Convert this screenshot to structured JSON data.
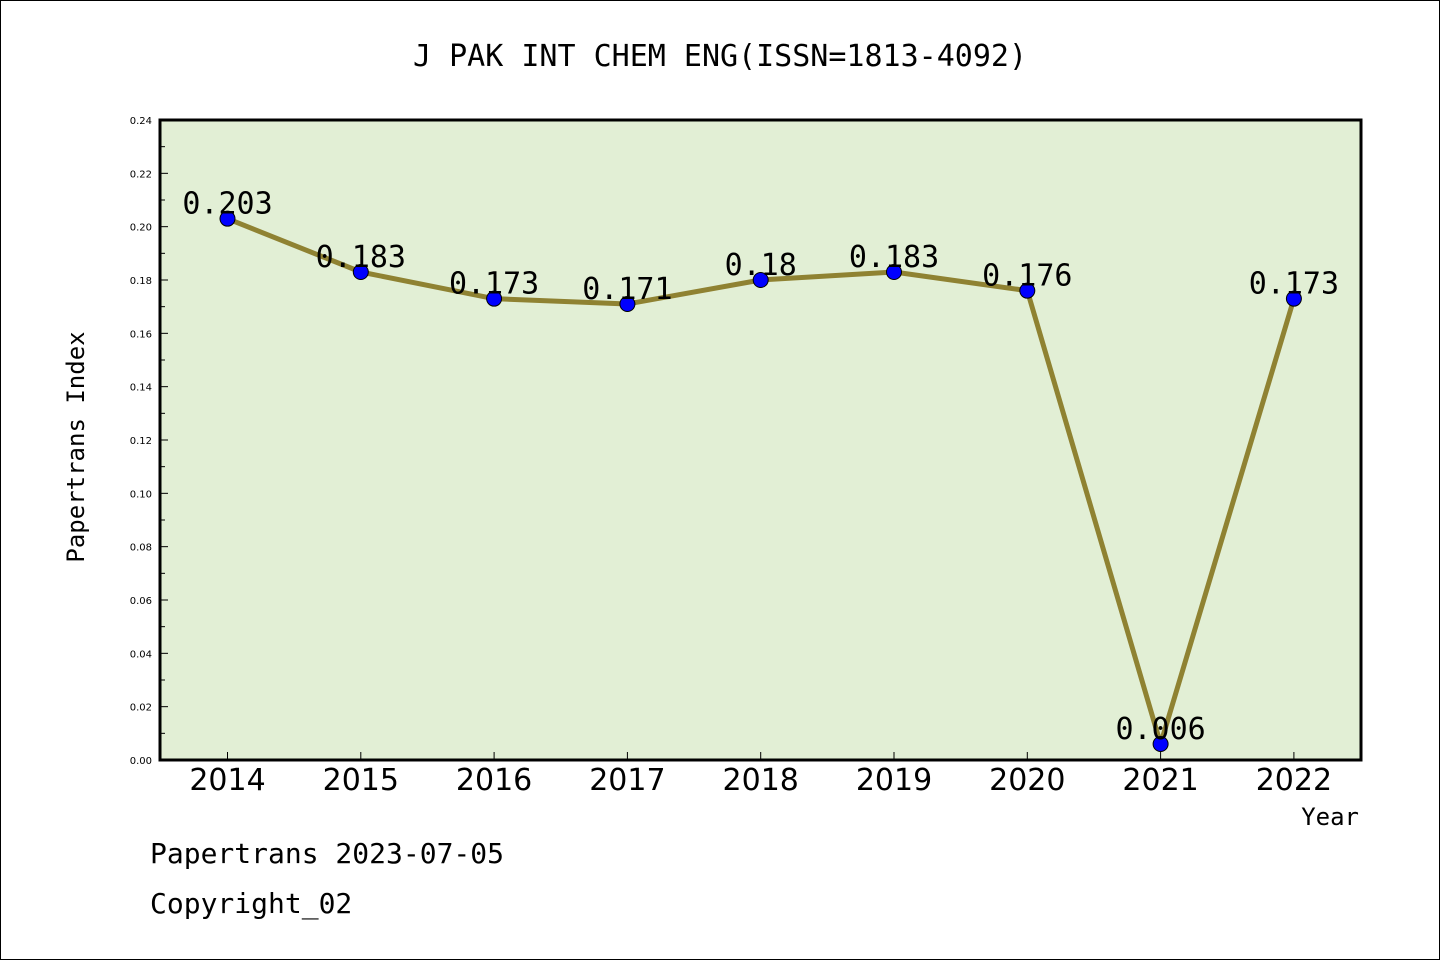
{
  "chart_data": {
    "type": "line",
    "title": "J PAK INT CHEM ENG(ISSN=1813-4092)",
    "xlabel": "Year",
    "ylabel": "Papertrans Index",
    "x": [
      "2014",
      "2015",
      "2016",
      "2017",
      "2018",
      "2019",
      "2020",
      "2021",
      "2022"
    ],
    "values": [
      0.203,
      0.183,
      0.173,
      0.171,
      0.18,
      0.183,
      0.176,
      0.006,
      0.173
    ],
    "data_labels": [
      "0.203",
      "0.183",
      "0.173",
      "0.171",
      "0.18",
      "0.183",
      "0.176",
      "0.006",
      "0.173"
    ],
    "ylim": [
      0,
      0.24
    ],
    "yticks": [
      "0.00",
      "0.02",
      "0.04",
      "0.06",
      "0.08",
      "0.10",
      "0.12",
      "0.14",
      "0.16",
      "0.18",
      "0.20",
      "0.22",
      "0.24"
    ],
    "grid": false,
    "colors": {
      "plot_background": "#e2efd5",
      "line": "#8f8232",
      "marker": "#0000ff"
    }
  },
  "footer": {
    "line1": "Papertrans 2023-07-05",
    "line2": "Copyright_02"
  }
}
